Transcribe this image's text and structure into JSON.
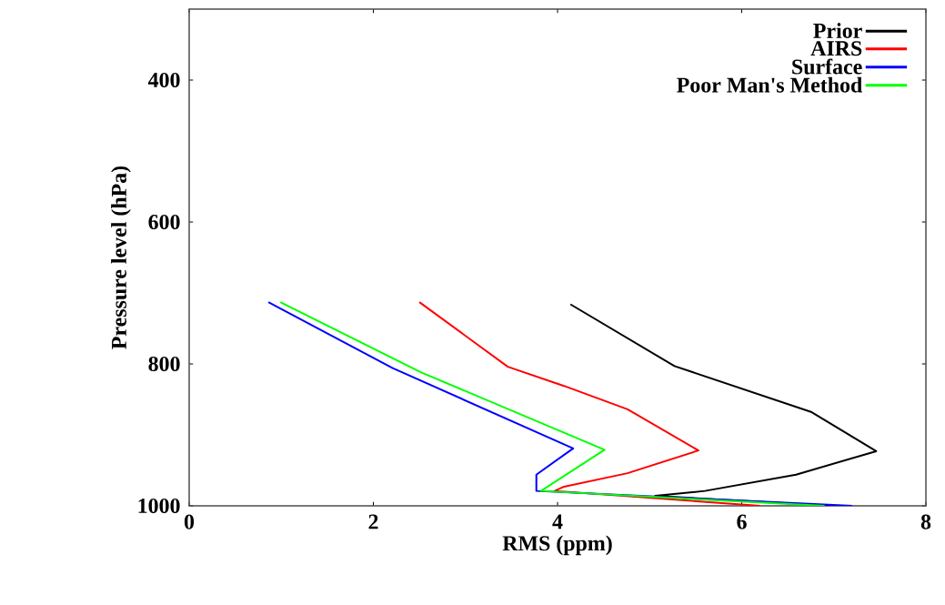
{
  "chart_data": {
    "type": "line",
    "xlabel": "RMS (ppm)",
    "ylabel": "Pressure level (hPa)",
    "xlim": [
      0,
      8
    ],
    "xticks": [
      0,
      2,
      4,
      6,
      8
    ],
    "ylim": [
      1000,
      300
    ],
    "yticks": [
      400,
      600,
      800,
      1000
    ],
    "legend": "top right",
    "grid": false,
    "marker": "none",
    "line_style": "solid",
    "series": [
      {
        "name": "Prior",
        "color": "#000000",
        "x": [
          4.14,
          5.27,
          6.76,
          7.46,
          6.59,
          5.6,
          5.06,
          7.0
        ],
        "values": [
          716,
          803,
          868,
          923,
          956,
          979,
          986,
          1000
        ]
      },
      {
        "name": "AIRS",
        "color": "#ff0000",
        "x": [
          2.5,
          3.46,
          4.07,
          4.76,
          5.53,
          4.76,
          4.07,
          3.97,
          6.2
        ],
        "values": [
          713,
          804,
          831,
          864,
          922,
          954,
          973,
          979,
          1000
        ]
      },
      {
        "name": "Surface",
        "color": "#0000ff",
        "x": [
          0.86,
          2.21,
          4.17,
          3.77,
          3.77,
          7.2
        ],
        "values": [
          713,
          806,
          919,
          956,
          979,
          1000
        ]
      },
      {
        "name": "Poor Man's Method",
        "color": "#00ff00",
        "x": [
          0.99,
          2.52,
          4.51,
          3.82,
          6.9
        ],
        "values": [
          713,
          812,
          921,
          979,
          1000
        ]
      }
    ]
  }
}
